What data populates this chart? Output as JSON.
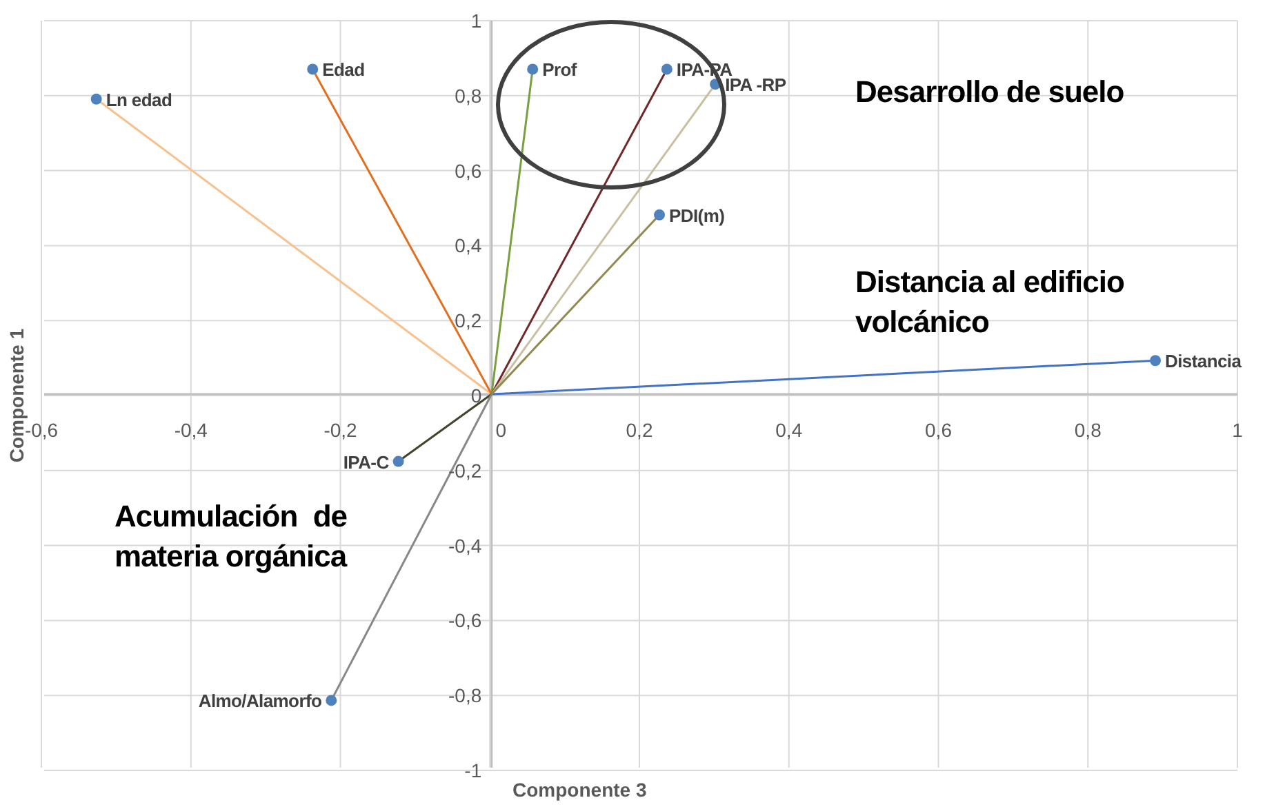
{
  "chart_data": {
    "type": "line",
    "xlabel": "Componente 3",
    "ylabel": "Componente 1",
    "xlim": [
      -0.6,
      1
    ],
    "ylim": [
      -1,
      1
    ],
    "xticks": [
      {
        "value": -0.6,
        "label": "-0,6"
      },
      {
        "value": -0.4,
        "label": "-0,4"
      },
      {
        "value": -0.2,
        "label": "-0,2"
      },
      0,
      {
        "value": 0.2,
        "label": "0,2"
      },
      {
        "value": 0.4,
        "label": "0,4"
      },
      {
        "value": 0.6,
        "label": "0,6"
      },
      {
        "value": 0.8,
        "label": "0,8"
      },
      1
    ],
    "yticks": [
      -1,
      {
        "value": -0.8,
        "label": "-0,8"
      },
      {
        "value": -0.6,
        "label": "-0,6"
      },
      {
        "value": -0.4,
        "label": "-0,4"
      },
      {
        "value": -0.2,
        "label": "-0,2"
      },
      0,
      {
        "value": 0.2,
        "label": "0,2"
      },
      {
        "value": 0.4,
        "label": "0,4"
      },
      {
        "value": 0.6,
        "label": "0,6"
      },
      {
        "value": 0.8,
        "label": "0,8"
      },
      1
    ],
    "grid": true,
    "marker": "circle",
    "legend": false,
    "series": [
      {
        "name": "Distancia",
        "color": "#4472c4",
        "x": [
          0,
          0.89
        ],
        "values": [
          0,
          0.09
        ]
      },
      {
        "name": "Ln edad",
        "color": "#f8c08c",
        "x": [
          0,
          -0.53
        ],
        "values": [
          0,
          0.79
        ]
      },
      {
        "name": "Edad",
        "color": "#e07020",
        "x": [
          0,
          -0.24
        ],
        "values": [
          0,
          0.87
        ]
      },
      {
        "name": "Prof",
        "color": "#78a040",
        "x": [
          0,
          0.055
        ],
        "values": [
          0,
          0.87
        ]
      },
      {
        "name": "IPA-PA",
        "color": "#702828",
        "x": [
          0,
          0.235
        ],
        "values": [
          0,
          0.87
        ]
      },
      {
        "name": "IPA -RP",
        "color": "#c8c0a0",
        "x": [
          0,
          0.3
        ],
        "values": [
          0,
          0.83
        ]
      },
      {
        "name": "PDI(m)",
        "color": "#908a50",
        "x": [
          0,
          0.225
        ],
        "values": [
          0,
          0.48
        ]
      },
      {
        "name": "IPA-C",
        "color": "#40442a",
        "x": [
          0,
          -0.125
        ],
        "values": [
          0,
          -0.18
        ]
      },
      {
        "name": "Almo/Alamorfo",
        "color": "#888888",
        "x": [
          0,
          -0.215
        ],
        "values": [
          0,
          -0.82
        ]
      }
    ],
    "annotations": [
      "Desarrollo de suelo",
      "Distancia al edificio volcánico",
      "Acumulación  de materia orgánica"
    ]
  }
}
